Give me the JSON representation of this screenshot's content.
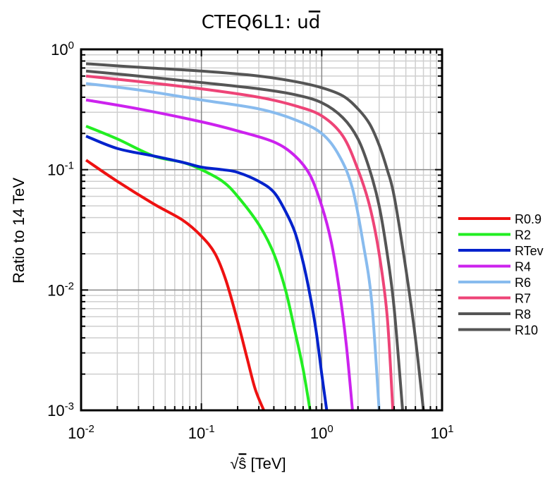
{
  "chart_data": {
    "type": "line",
    "title": {
      "base": "CTEQ6L1: u",
      "overbar": "d"
    },
    "xlabel": {
      "sqrt_symbol": "√",
      "variable": "ŝ",
      "unit": " [TeV]"
    },
    "ylabel": "Ratio to 14 TeV",
    "x_scale": "log",
    "y_scale": "log",
    "xlim": [
      0.01,
      10
    ],
    "ylim": [
      0.001,
      1
    ],
    "x_ticks": [
      {
        "base": "10",
        "exp": "-2"
      },
      {
        "base": "10",
        "exp": "-1"
      },
      {
        "base": "10",
        "exp": "0"
      },
      {
        "base": "10",
        "exp": "1"
      }
    ],
    "y_ticks": [
      {
        "base": "10",
        "exp": "-3"
      },
      {
        "base": "10",
        "exp": "-2"
      },
      {
        "base": "10",
        "exp": "-1"
      },
      {
        "base": "10",
        "exp": "0"
      }
    ],
    "grid": true,
    "legend_position": "right",
    "series": [
      {
        "name": "R0.9",
        "color": "#ee1111",
        "points": [
          [
            0.011,
            0.12
          ],
          [
            0.02,
            0.08
          ],
          [
            0.04,
            0.052
          ],
          [
            0.07,
            0.038
          ],
          [
            0.1,
            0.028
          ],
          [
            0.13,
            0.02
          ],
          [
            0.16,
            0.012
          ],
          [
            0.2,
            0.0055
          ],
          [
            0.24,
            0.0027
          ],
          [
            0.28,
            0.0015
          ],
          [
            0.33,
            0.001
          ]
        ]
      },
      {
        "name": "R2",
        "color": "#22ee22",
        "points": [
          [
            0.011,
            0.23
          ],
          [
            0.02,
            0.18
          ],
          [
            0.04,
            0.13
          ],
          [
            0.07,
            0.115
          ],
          [
            0.1,
            0.1
          ],
          [
            0.15,
            0.08
          ],
          [
            0.2,
            0.06
          ],
          [
            0.3,
            0.035
          ],
          [
            0.4,
            0.02
          ],
          [
            0.5,
            0.01
          ],
          [
            0.6,
            0.0045
          ],
          [
            0.7,
            0.0022
          ],
          [
            0.8,
            0.001
          ]
        ]
      },
      {
        "name": "RTev",
        "color": "#0022cc",
        "points": [
          [
            0.011,
            0.19
          ],
          [
            0.02,
            0.15
          ],
          [
            0.04,
            0.13
          ],
          [
            0.07,
            0.115
          ],
          [
            0.1,
            0.105
          ],
          [
            0.15,
            0.1
          ],
          [
            0.2,
            0.095
          ],
          [
            0.3,
            0.08
          ],
          [
            0.4,
            0.065
          ],
          [
            0.5,
            0.045
          ],
          [
            0.6,
            0.03
          ],
          [
            0.7,
            0.017
          ],
          [
            0.8,
            0.009
          ],
          [
            0.9,
            0.0045
          ],
          [
            1.0,
            0.002
          ],
          [
            1.1,
            0.001
          ]
        ]
      },
      {
        "name": "R4",
        "color": "#cc22ee",
        "points": [
          [
            0.011,
            0.38
          ],
          [
            0.03,
            0.32
          ],
          [
            0.1,
            0.25
          ],
          [
            0.2,
            0.21
          ],
          [
            0.4,
            0.17
          ],
          [
            0.6,
            0.13
          ],
          [
            0.8,
            0.09
          ],
          [
            1.0,
            0.05
          ],
          [
            1.2,
            0.025
          ],
          [
            1.4,
            0.01
          ],
          [
            1.6,
            0.0035
          ],
          [
            1.8,
            0.001
          ]
        ]
      },
      {
        "name": "R6",
        "color": "#88bbee",
        "points": [
          [
            0.011,
            0.52
          ],
          [
            0.03,
            0.46
          ],
          [
            0.1,
            0.38
          ],
          [
            0.3,
            0.32
          ],
          [
            0.6,
            0.26
          ],
          [
            1.0,
            0.2
          ],
          [
            1.4,
            0.13
          ],
          [
            1.8,
            0.07
          ],
          [
            2.2,
            0.025
          ],
          [
            2.6,
            0.008
          ],
          [
            3.0,
            0.001
          ]
        ]
      },
      {
        "name": "R7",
        "color": "#ee4477",
        "points": [
          [
            0.011,
            0.6
          ],
          [
            0.03,
            0.54
          ],
          [
            0.1,
            0.47
          ],
          [
            0.3,
            0.4
          ],
          [
            0.6,
            0.34
          ],
          [
            1.0,
            0.28
          ],
          [
            1.5,
            0.19
          ],
          [
            2.0,
            0.1
          ],
          [
            2.5,
            0.05
          ],
          [
            3.0,
            0.02
          ],
          [
            3.5,
            0.006
          ],
          [
            3.9,
            0.001
          ]
        ]
      },
      {
        "name": "R8",
        "color": "#555555",
        "points": [
          [
            0.011,
            0.66
          ],
          [
            0.03,
            0.6
          ],
          [
            0.1,
            0.53
          ],
          [
            0.3,
            0.47
          ],
          [
            0.6,
            0.42
          ],
          [
            1.0,
            0.36
          ],
          [
            1.5,
            0.27
          ],
          [
            2.0,
            0.18
          ],
          [
            2.5,
            0.1
          ],
          [
            3.0,
            0.05
          ],
          [
            3.5,
            0.02
          ],
          [
            4.0,
            0.007
          ],
          [
            4.7,
            0.001
          ]
        ]
      },
      {
        "name": "R10",
        "color": "#555555",
        "points": [
          [
            0.011,
            0.76
          ],
          [
            0.03,
            0.71
          ],
          [
            0.1,
            0.66
          ],
          [
            0.3,
            0.6
          ],
          [
            0.6,
            0.54
          ],
          [
            1.0,
            0.48
          ],
          [
            1.5,
            0.41
          ],
          [
            2.0,
            0.32
          ],
          [
            2.5,
            0.24
          ],
          [
            3.0,
            0.16
          ],
          [
            3.5,
            0.1
          ],
          [
            4.0,
            0.06
          ],
          [
            5.0,
            0.015
          ],
          [
            6.0,
            0.004
          ],
          [
            7.0,
            0.001
          ]
        ]
      }
    ]
  }
}
